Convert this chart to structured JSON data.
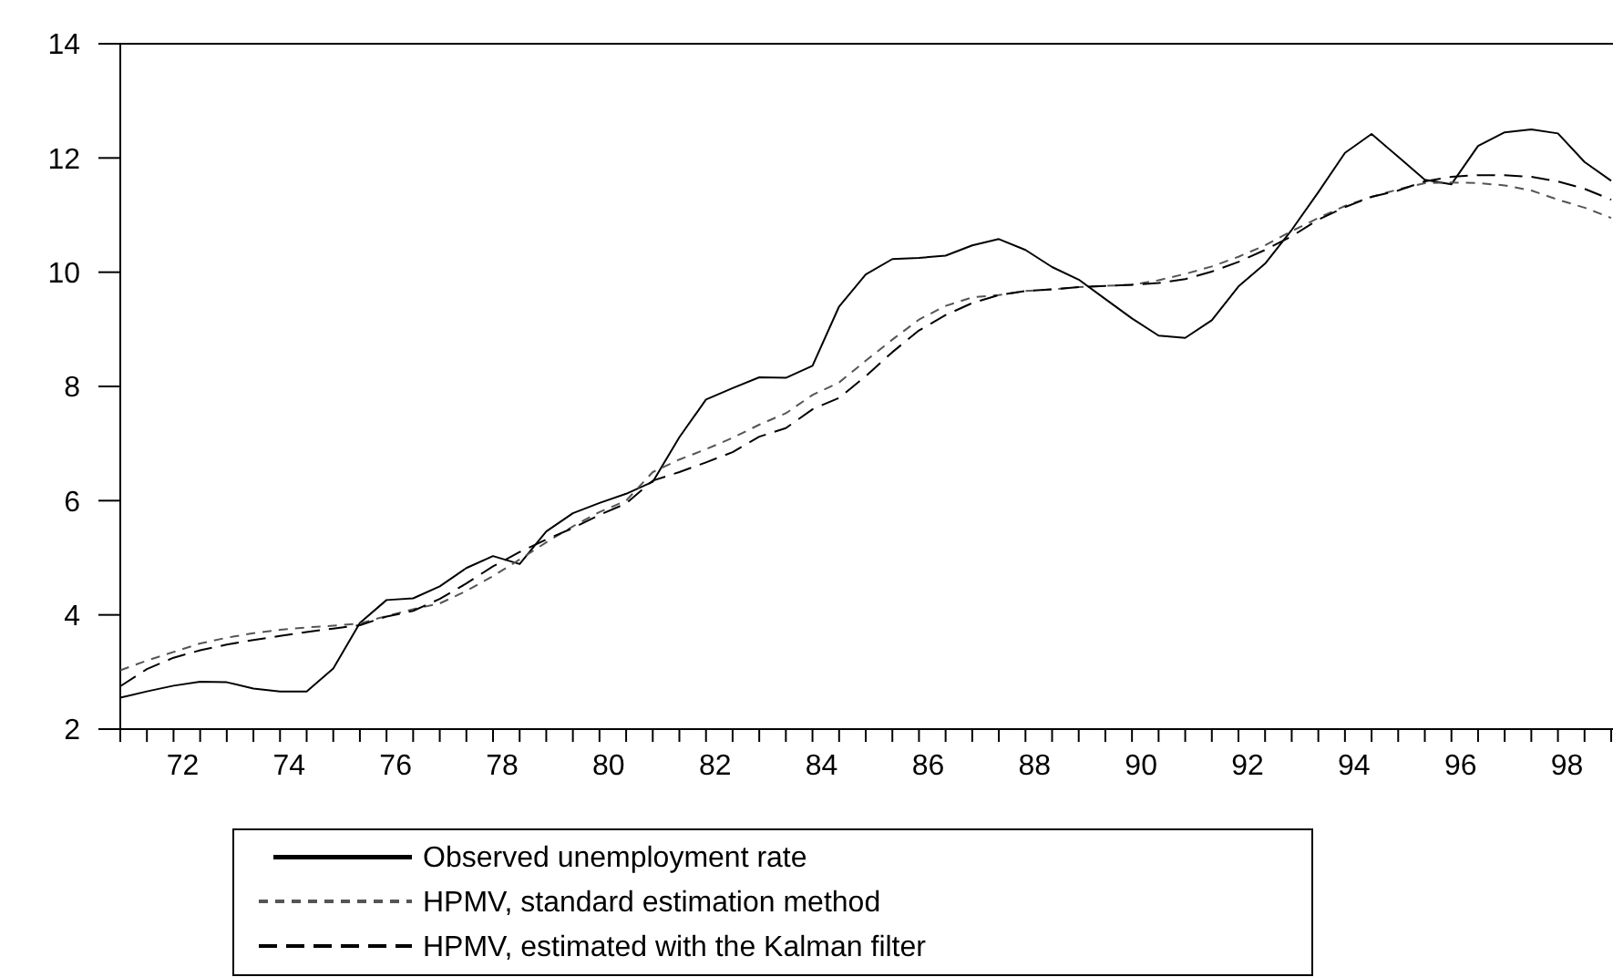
{
  "chart_data": {
    "type": "line",
    "categories": [
      null,
      null,
      "72",
      null,
      null,
      null,
      "74",
      null,
      null,
      null,
      "76",
      null,
      null,
      null,
      "78",
      null,
      null,
      null,
      "80",
      null,
      null,
      null,
      "82",
      null,
      null,
      null,
      "84",
      null,
      null,
      null,
      "86",
      null,
      null,
      null,
      "88",
      null,
      null,
      null,
      "90",
      null,
      null,
      null,
      "92",
      null,
      null,
      null,
      "94",
      null,
      null,
      null,
      "96",
      null,
      null,
      null,
      "98",
      null,
      null
    ],
    "ylim": [
      2,
      14
    ],
    "yticks": [
      2,
      4,
      6,
      8,
      10,
      12,
      14
    ],
    "legend": "bottom",
    "grid": false,
    "series": [
      {
        "name": "Observed unemployment rate",
        "color": "#000000",
        "line_style": "solid",
        "values": [
          2.55,
          2.66,
          2.76,
          2.83,
          2.82,
          2.71,
          2.66,
          2.66,
          3.06,
          3.86,
          4.26,
          4.29,
          4.5,
          4.82,
          5.03,
          4.89,
          5.46,
          5.78,
          5.96,
          6.12,
          6.33,
          7.11,
          7.77,
          7.97,
          8.16,
          8.15,
          8.36,
          9.4,
          9.96,
          10.23,
          10.25,
          10.29,
          10.47,
          10.58,
          10.39,
          10.09,
          9.87,
          9.53,
          9.19,
          8.89,
          8.85,
          9.16,
          9.75,
          10.15,
          10.74,
          11.4,
          12.09,
          12.42,
          12.02,
          11.62,
          11.54,
          12.21,
          12.45,
          12.5,
          12.43,
          11.93,
          11.6
        ]
      },
      {
        "name": "HPMV, standard estimation method",
        "color": "#555555",
        "line_style": "dashed",
        "values": [
          3.03,
          3.2,
          3.35,
          3.5,
          3.6,
          3.68,
          3.74,
          3.78,
          3.81,
          3.85,
          3.98,
          4.1,
          4.2,
          4.42,
          4.68,
          4.97,
          5.27,
          5.55,
          5.8,
          6.0,
          6.5,
          6.72,
          6.9,
          7.1,
          7.33,
          7.53,
          7.85,
          8.07,
          8.45,
          8.82,
          9.17,
          9.41,
          9.56,
          9.6,
          9.67,
          9.7,
          9.74,
          9.76,
          9.78,
          9.86,
          9.97,
          10.1,
          10.27,
          10.47,
          10.72,
          10.95,
          11.16,
          11.32,
          11.45,
          11.56,
          11.57,
          11.56,
          11.52,
          11.43,
          11.27,
          11.13,
          10.95
        ]
      },
      {
        "name": "HPMV, estimated with the Kalman filter",
        "color": "#000000",
        "line_style": "dashed",
        "values": [
          2.75,
          3.05,
          3.25,
          3.38,
          3.48,
          3.56,
          3.63,
          3.7,
          3.76,
          3.82,
          3.97,
          4.07,
          4.28,
          4.55,
          4.85,
          5.1,
          5.32,
          5.52,
          5.75,
          5.95,
          6.35,
          6.5,
          6.67,
          6.85,
          7.12,
          7.27,
          7.6,
          7.8,
          8.18,
          8.6,
          8.98,
          9.25,
          9.46,
          9.6,
          9.67,
          9.7,
          9.74,
          9.76,
          9.78,
          9.81,
          9.88,
          10.01,
          10.18,
          10.39,
          10.63,
          10.92,
          11.14,
          11.32,
          11.43,
          11.59,
          11.67,
          11.7,
          11.7,
          11.67,
          11.59,
          11.46,
          11.27
        ]
      }
    ]
  }
}
